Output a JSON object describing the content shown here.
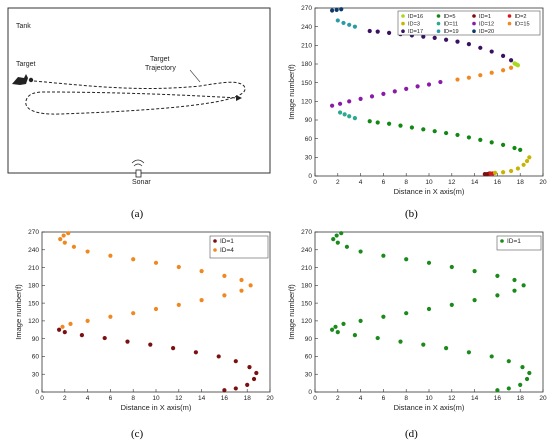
{
  "panels": {
    "a": {
      "caption": "(a)",
      "tank_label": "Tank",
      "target_label": "Target",
      "trajectory_label": "Target\nTrajectory",
      "sonar_label": "Sonar"
    },
    "b": {
      "caption": "(b)"
    },
    "c": {
      "caption": "(c)"
    },
    "d": {
      "caption": "(d)"
    }
  },
  "chart_data": [
    {
      "panel": "b",
      "type": "scatter",
      "xlabel": "Distance in X axis(m)",
      "ylabel": "Image number(f)",
      "xlim": [
        0,
        20
      ],
      "ylim": [
        0,
        270
      ],
      "xticks": [
        0,
        2,
        4,
        6,
        8,
        10,
        12,
        14,
        16,
        18,
        20
      ],
      "yticks": [
        0,
        30,
        60,
        90,
        120,
        150,
        180,
        210,
        240,
        270
      ],
      "legend_position": "top-right",
      "legend_columns": 4,
      "series": [
        {
          "name": "ID=16",
          "color": "#a8d820",
          "points": [
            [
              17.5,
              181
            ],
            [
              17.6,
              180
            ],
            [
              17.7,
              179
            ],
            [
              17.8,
              178
            ]
          ]
        },
        {
          "name": "ID=5",
          "color": "#118811",
          "points": [
            [
              4.8,
              88
            ],
            [
              5.5,
              86
            ],
            [
              6.5,
              84
            ],
            [
              7.5,
              81
            ],
            [
              8.5,
              78
            ],
            [
              9.5,
              75
            ],
            [
              10.5,
              72
            ],
            [
              11.5,
              69
            ],
            [
              12.5,
              66
            ],
            [
              13.5,
              62
            ],
            [
              14.5,
              58
            ],
            [
              15.5,
              54
            ],
            [
              16.5,
              50
            ],
            [
              17.5,
              45
            ],
            [
              18.0,
              42
            ]
          ]
        },
        {
          "name": "ID=1",
          "color": "#7a1010",
          "points": [
            [
              14.9,
              3
            ],
            [
              15.1,
              3
            ],
            [
              15.3,
              4
            ]
          ]
        },
        {
          "name": "ID=2",
          "color": "#d81818",
          "points": [
            [
              15.4,
              4
            ],
            [
              15.6,
              4
            ]
          ]
        },
        {
          "name": "ID=3",
          "color": "#c8b400",
          "points": [
            [
              15.8,
              5
            ],
            [
              16.5,
              6
            ],
            [
              17.2,
              8
            ],
            [
              17.8,
              12
            ],
            [
              18.3,
              18
            ],
            [
              18.6,
              24
            ],
            [
              18.8,
              30
            ]
          ]
        },
        {
          "name": "ID=11",
          "color": "#2aa890",
          "points": [
            [
              2.2,
              102
            ],
            [
              2.6,
              99
            ],
            [
              3.0,
              96
            ],
            [
              3.5,
              93
            ]
          ]
        },
        {
          "name": "ID=12",
          "color": "#8a1aa8",
          "points": [
            [
              1.5,
              113
            ],
            [
              2.2,
              116
            ],
            [
              3.0,
              120
            ],
            [
              4.0,
              124
            ],
            [
              5.0,
              128
            ],
            [
              6.0,
              132
            ],
            [
              7.0,
              136
            ],
            [
              8.0,
              140
            ],
            [
              9.0,
              144
            ],
            [
              10.0,
              147
            ],
            [
              11.0,
              151
            ]
          ]
        },
        {
          "name": "ID=15",
          "color": "#f08820",
          "points": [
            [
              12.5,
              155
            ],
            [
              13.5,
              158
            ],
            [
              14.5,
              162
            ],
            [
              15.5,
              166
            ],
            [
              16.5,
              170
            ],
            [
              17.2,
              174
            ]
          ]
        },
        {
          "name": "ID=17",
          "color": "#3a1060",
          "points": [
            [
              4.8,
              233
            ],
            [
              5.5,
              232
            ],
            [
              6.5,
              230
            ],
            [
              7.5,
              228
            ],
            [
              8.5,
              226
            ],
            [
              9.5,
              224
            ],
            [
              10.5,
              222
            ],
            [
              11.5,
              219
            ],
            [
              12.5,
              216
            ],
            [
              13.5,
              212
            ],
            [
              14.5,
              206
            ],
            [
              15.5,
              200
            ],
            [
              16.5,
              193
            ],
            [
              17.2,
              186
            ]
          ]
        },
        {
          "name": "ID=19",
          "color": "#2a9aa8",
          "points": [
            [
              2.0,
              250
            ],
            [
              2.5,
              246
            ],
            [
              3.0,
              243
            ],
            [
              3.5,
              240
            ]
          ]
        },
        {
          "name": "ID=20",
          "color": "#0a3a6a",
          "points": [
            [
              1.5,
              266
            ],
            [
              1.9,
              267
            ],
            [
              2.3,
              268
            ]
          ]
        }
      ]
    },
    {
      "panel": "c",
      "type": "scatter",
      "xlabel": "Distance in X axis(m)",
      "ylabel": "Image number(f)",
      "xlim": [
        0,
        20
      ],
      "ylim": [
        0,
        270
      ],
      "xticks": [
        0,
        2,
        4,
        6,
        8,
        10,
        12,
        14,
        16,
        18,
        20
      ],
      "yticks": [
        0,
        30,
        60,
        90,
        120,
        150,
        180,
        210,
        240,
        270
      ],
      "legend_position": "top-right",
      "legend_columns": 1,
      "series": [
        {
          "name": "ID=1",
          "color": "#7a1010",
          "points": [
            [
              16.0,
              3
            ],
            [
              17.0,
              6
            ],
            [
              18.0,
              12
            ],
            [
              18.6,
              22
            ],
            [
              18.8,
              32
            ],
            [
              18.2,
              42
            ],
            [
              17.0,
              52
            ],
            [
              15.5,
              60
            ],
            [
              13.5,
              67
            ],
            [
              11.5,
              74
            ],
            [
              9.5,
              80
            ],
            [
              7.5,
              85
            ],
            [
              5.5,
              91
            ],
            [
              3.5,
              96
            ],
            [
              2.0,
              101
            ],
            [
              1.5,
              105
            ]
          ]
        },
        {
          "name": "ID=4",
          "color": "#f08820",
          "points": [
            [
              1.8,
              110
            ],
            [
              2.5,
              115
            ],
            [
              4.0,
              120
            ],
            [
              6.0,
              127
            ],
            [
              8.0,
              133
            ],
            [
              10.0,
              140
            ],
            [
              12.0,
              147
            ],
            [
              14.0,
              155
            ],
            [
              16.0,
              163
            ],
            [
              17.5,
              171
            ],
            [
              18.3,
              180
            ],
            [
              17.5,
              189
            ],
            [
              16.0,
              196
            ],
            [
              14.0,
              204
            ],
            [
              12.0,
              211
            ],
            [
              10.0,
              218
            ],
            [
              8.0,
              224
            ],
            [
              6.0,
              230
            ],
            [
              4.0,
              237
            ],
            [
              2.8,
              245
            ],
            [
              2.0,
              252
            ],
            [
              1.6,
              258
            ],
            [
              1.9,
              264
            ],
            [
              2.3,
              268
            ]
          ]
        }
      ]
    },
    {
      "panel": "d",
      "type": "scatter",
      "xlabel": "Distance in X axis(m)",
      "ylabel": "Image number(f)",
      "xlim": [
        0,
        20
      ],
      "ylim": [
        0,
        270
      ],
      "xticks": [
        0,
        2,
        4,
        6,
        8,
        10,
        12,
        14,
        16,
        18,
        20
      ],
      "yticks": [
        0,
        30,
        60,
        90,
        120,
        150,
        180,
        210,
        240,
        270
      ],
      "legend_position": "top-right",
      "legend_columns": 1,
      "series": [
        {
          "name": "ID=1",
          "color": "#1a8a1a",
          "points": [
            [
              16.0,
              3
            ],
            [
              17.0,
              6
            ],
            [
              18.0,
              12
            ],
            [
              18.6,
              22
            ],
            [
              18.8,
              32
            ],
            [
              18.2,
              42
            ],
            [
              17.0,
              52
            ],
            [
              15.5,
              60
            ],
            [
              13.5,
              67
            ],
            [
              11.5,
              74
            ],
            [
              9.5,
              80
            ],
            [
              7.5,
              85
            ],
            [
              5.5,
              91
            ],
            [
              3.5,
              96
            ],
            [
              2.0,
              101
            ],
            [
              1.5,
              105
            ],
            [
              1.8,
              110
            ],
            [
              2.5,
              115
            ],
            [
              4.0,
              120
            ],
            [
              6.0,
              127
            ],
            [
              8.0,
              133
            ],
            [
              10.0,
              140
            ],
            [
              12.0,
              147
            ],
            [
              14.0,
              155
            ],
            [
              16.0,
              163
            ],
            [
              17.5,
              171
            ],
            [
              18.3,
              180
            ],
            [
              17.5,
              189
            ],
            [
              16.0,
              196
            ],
            [
              14.0,
              204
            ],
            [
              12.0,
              211
            ],
            [
              10.0,
              218
            ],
            [
              8.0,
              224
            ],
            [
              6.0,
              230
            ],
            [
              4.0,
              237
            ],
            [
              2.8,
              245
            ],
            [
              2.0,
              252
            ],
            [
              1.6,
              258
            ],
            [
              1.9,
              264
            ],
            [
              2.3,
              268
            ]
          ]
        }
      ]
    }
  ]
}
